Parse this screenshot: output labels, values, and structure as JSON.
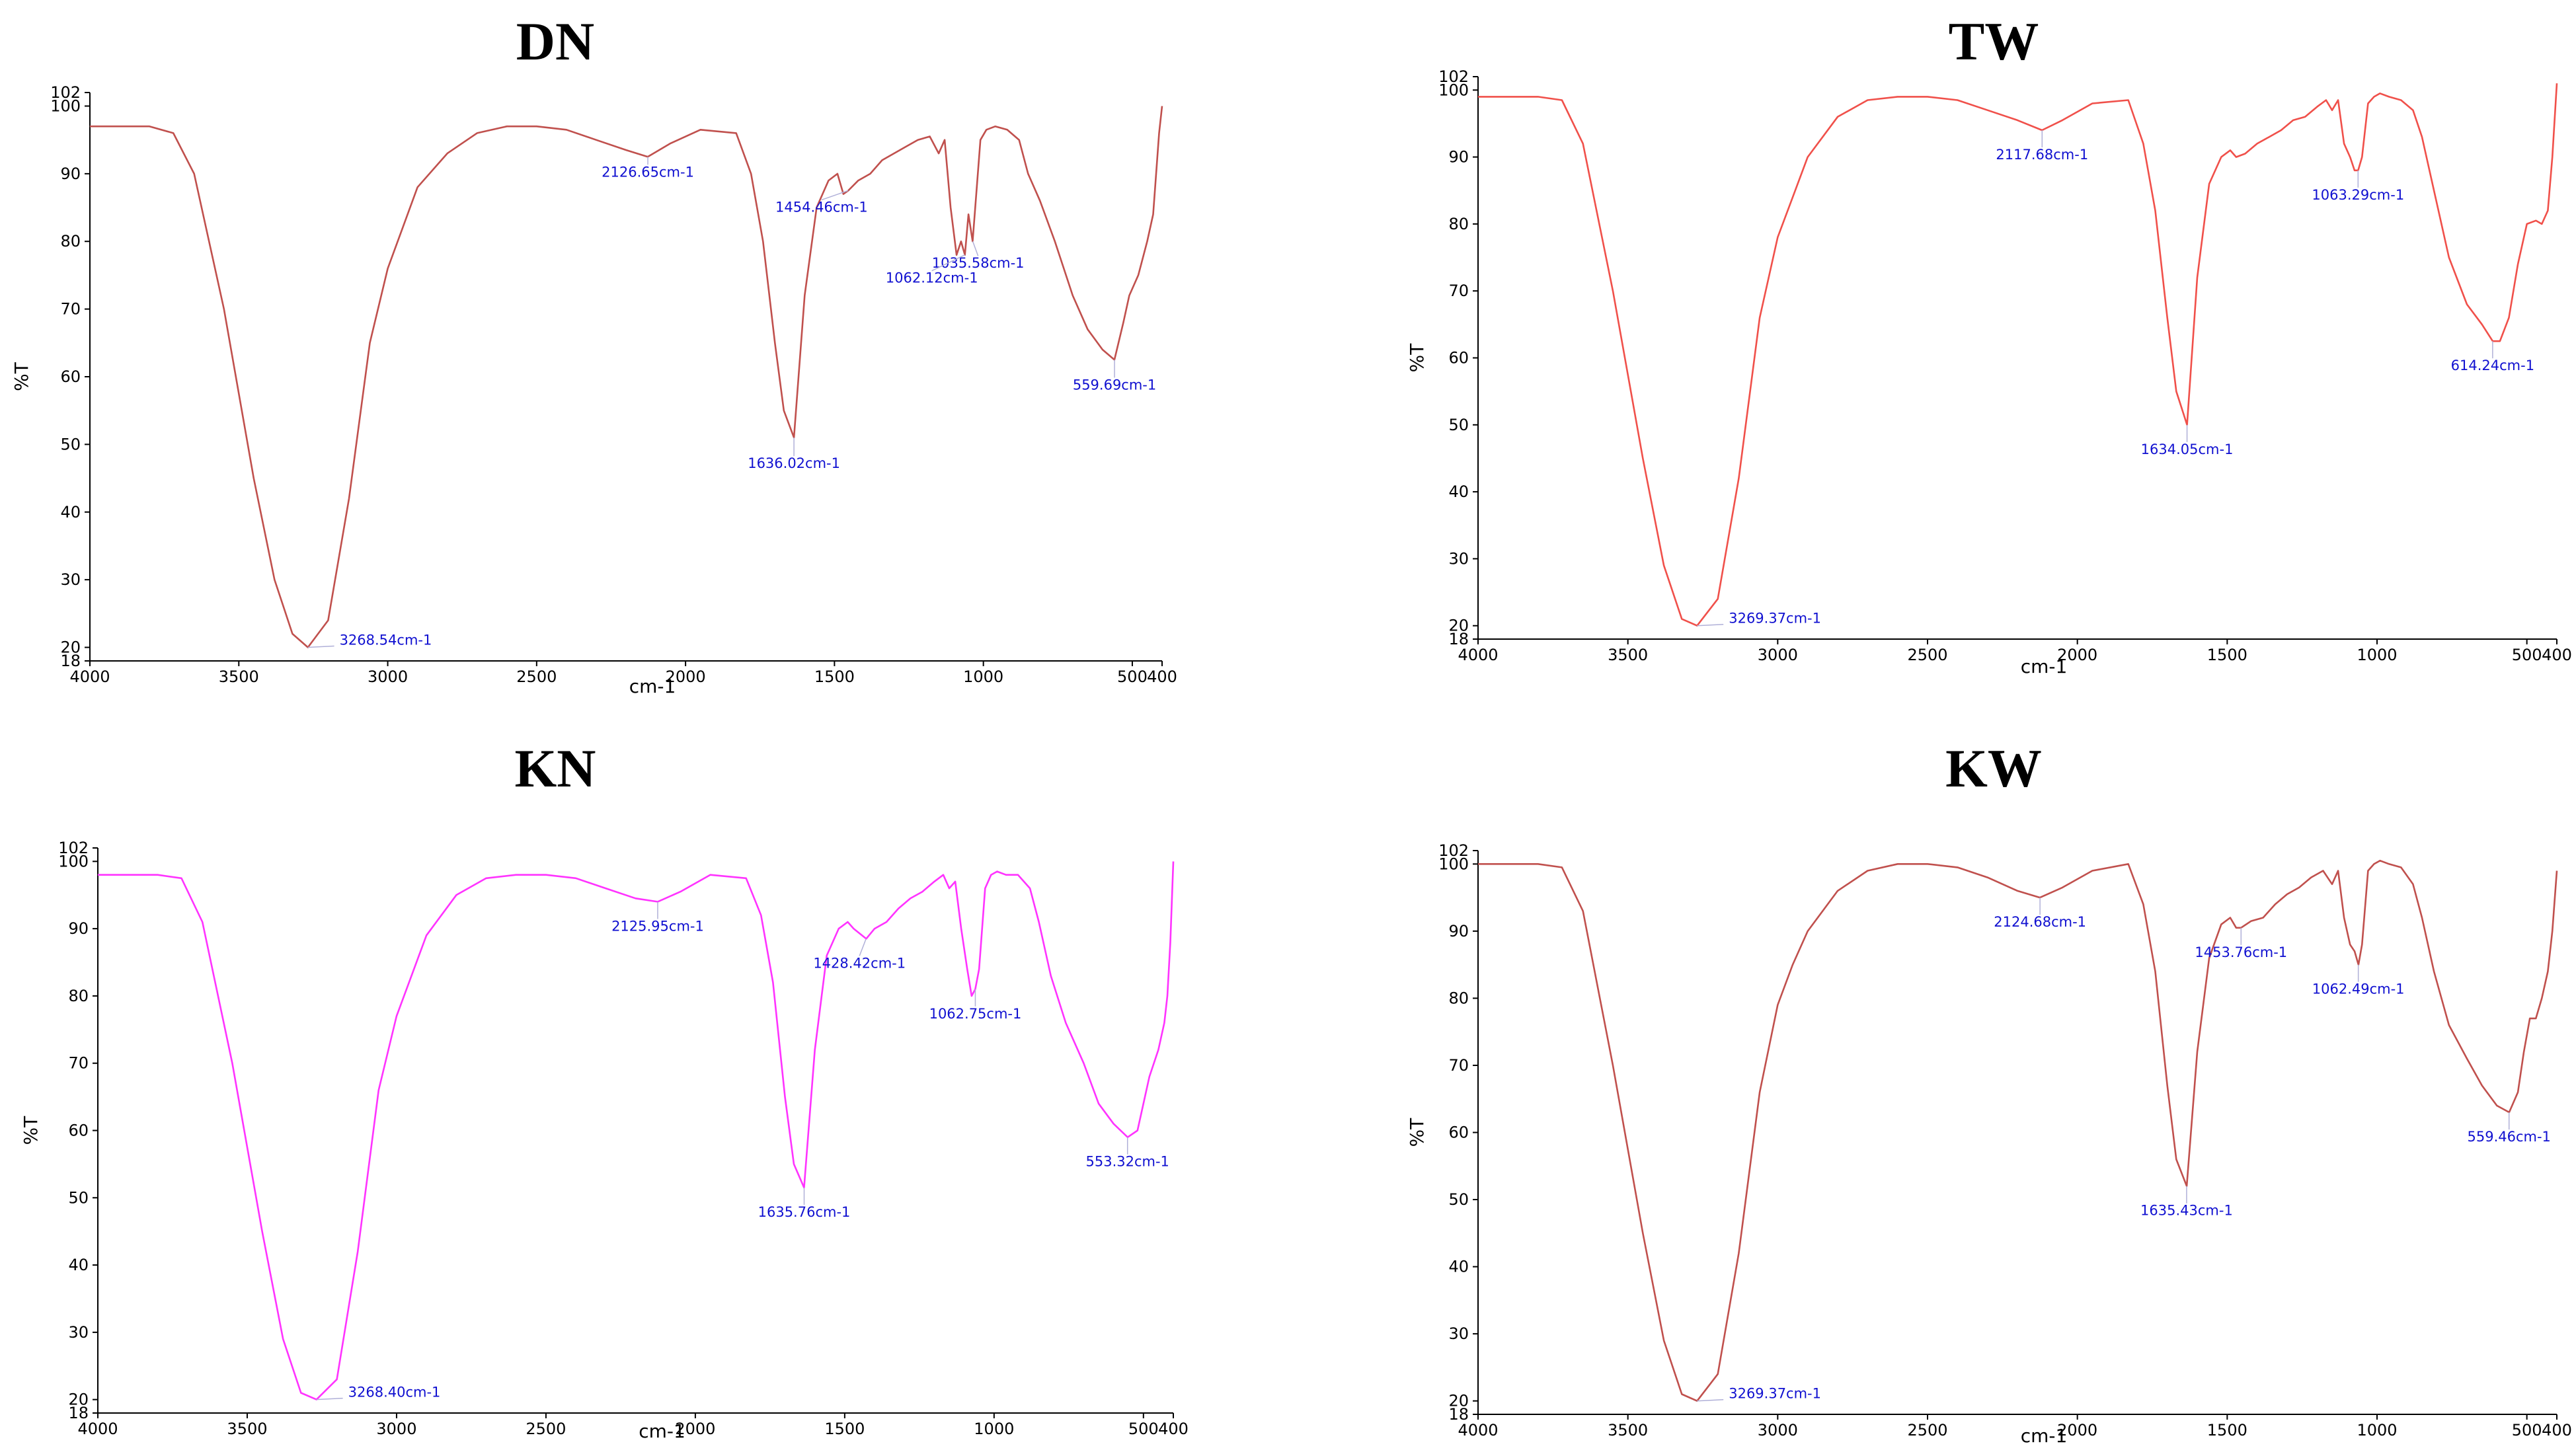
{
  "chart_data": [
    {
      "type": "line",
      "title": "DN",
      "xlabel": "cm-1",
      "ylabel": "%T",
      "xlim": [
        4000,
        400
      ],
      "ylim": [
        18,
        102
      ],
      "x_reversed": true,
      "xticks": [
        4000,
        3500,
        3000,
        2500,
        2000,
        1500,
        1000,
        500,
        400
      ],
      "yticks": [
        18,
        20,
        30,
        40,
        50,
        60,
        70,
        80,
        90,
        100,
        102
      ],
      "grid": false,
      "series": [
        {
          "color": "#c0504d",
          "x": [
            4000,
            3800,
            3720,
            3650,
            3550,
            3450,
            3380,
            3320,
            3268,
            3200,
            3130,
            3060,
            3000,
            2950,
            2900,
            2800,
            2700,
            2600,
            2500,
            2400,
            2300,
            2200,
            2127,
            2050,
            1950,
            1830,
            1780,
            1740,
            1700,
            1670,
            1636,
            1600,
            1560,
            1520,
            1490,
            1470,
            1454,
            1420,
            1380,
            1340,
            1300,
            1260,
            1220,
            1180,
            1150,
            1130,
            1110,
            1090,
            1075,
            1062,
            1050,
            1036,
            1010,
            990,
            960,
            920,
            880,
            850,
            810,
            760,
            700,
            650,
            600,
            560,
            530,
            510,
            480,
            450,
            430,
            420,
            410,
            400
          ],
          "y": [
            97,
            97,
            96,
            90,
            70,
            45,
            30,
            22,
            20,
            24,
            42,
            65,
            76,
            82,
            88,
            93,
            96,
            97,
            97,
            96.5,
            95,
            93.5,
            92.5,
            94.5,
            96.5,
            96,
            90,
            80,
            65,
            55,
            51,
            72,
            85,
            89,
            90,
            87,
            87.5,
            89,
            90,
            92,
            93,
            94,
            95,
            95.5,
            93,
            95,
            85,
            78,
            80,
            78,
            84,
            80,
            95,
            96.5,
            97,
            96.5,
            95,
            90,
            86,
            80,
            72,
            67,
            64,
            62.5,
            68,
            72,
            75,
            80,
            84,
            90,
            96,
            100
          ]
        }
      ],
      "peaks": [
        {
          "label": "2126.65cm-1",
          "x": 2126.65,
          "y": 92.5
        },
        {
          "label": "1454.46cm-1",
          "x": 1454.46,
          "y": 87.5
        },
        {
          "label": "1035.58cm-1",
          "x": 1035.58,
          "y": 80
        },
        {
          "label": "1062.12cm-1",
          "x": 1062.12,
          "y": 78
        },
        {
          "label": "559.69cm-1",
          "x": 559.69,
          "y": 62.5
        },
        {
          "label": "1636.02cm-1",
          "x": 1636.02,
          "y": 51
        },
        {
          "label": "3268.54cm-1",
          "x": 3268.54,
          "y": 20
        }
      ]
    },
    {
      "type": "line",
      "title": "TW",
      "xlabel": "cm-1",
      "ylabel": "%T",
      "xlim": [
        4000,
        400
      ],
      "ylim": [
        18,
        102
      ],
      "x_reversed": true,
      "xticks": [
        4000,
        3500,
        3000,
        2500,
        2000,
        1500,
        1000,
        500,
        400
      ],
      "yticks": [
        18,
        20,
        30,
        40,
        50,
        60,
        70,
        80,
        90,
        100,
        102
      ],
      "grid": false,
      "series": [
        {
          "color": "#f0504a",
          "x": [
            4000,
            3800,
            3720,
            3650,
            3550,
            3450,
            3380,
            3320,
            3269,
            3200,
            3130,
            3060,
            3000,
            2950,
            2900,
            2800,
            2700,
            2600,
            2500,
            2400,
            2300,
            2200,
            2118,
            2050,
            1950,
            1830,
            1780,
            1740,
            1700,
            1670,
            1634,
            1600,
            1560,
            1520,
            1490,
            1470,
            1440,
            1400,
            1360,
            1320,
            1280,
            1240,
            1200,
            1170,
            1150,
            1130,
            1110,
            1090,
            1075,
            1063,
            1050,
            1030,
            1010,
            990,
            960,
            920,
            880,
            850,
            810,
            760,
            700,
            650,
            614,
            590,
            560,
            530,
            500,
            470,
            450,
            430,
            415,
            400
          ],
          "y": [
            99,
            99,
            98.5,
            92,
            70,
            45,
            29,
            21,
            20,
            24,
            42,
            66,
            78,
            84,
            90,
            96,
            98.5,
            99,
            99,
            98.5,
            97,
            95.5,
            94,
            95.5,
            98,
            98.5,
            92,
            82,
            66,
            55,
            50,
            72,
            86,
            90,
            91,
            90,
            90.5,
            92,
            93,
            94,
            95.5,
            96,
            97.5,
            98.5,
            97,
            98.5,
            92,
            90,
            88,
            88,
            90,
            98,
            99,
            99.5,
            99,
            98.5,
            97,
            93,
            85,
            75,
            68,
            65,
            62.5,
            62.5,
            66,
            74,
            80,
            80.5,
            80,
            82,
            90,
            101
          ]
        }
      ],
      "peaks": [
        {
          "label": "2117.68cm-1",
          "x": 2117.68,
          "y": 94
        },
        {
          "label": "1063.29cm-1",
          "x": 1063.29,
          "y": 88
        },
        {
          "label": "614.24cm-1",
          "x": 614.24,
          "y": 62.5
        },
        {
          "label": "1634.05cm-1",
          "x": 1634.05,
          "y": 50
        },
        {
          "label": "3269.37cm-1",
          "x": 3269.37,
          "y": 20
        }
      ]
    },
    {
      "type": "line",
      "title": "KN",
      "xlabel": "cm-1",
      "ylabel": "%T",
      "xlim": [
        4000,
        400
      ],
      "ylim": [
        18,
        102
      ],
      "x_reversed": true,
      "xticks": [
        4000,
        3500,
        3000,
        2500,
        2000,
        1500,
        1000,
        500,
        400
      ],
      "yticks": [
        18,
        20,
        30,
        40,
        50,
        60,
        70,
        80,
        90,
        100,
        102
      ],
      "grid": false,
      "series": [
        {
          "color": "#ff33ff",
          "x": [
            4000,
            3800,
            3720,
            3650,
            3550,
            3450,
            3380,
            3320,
            3268,
            3200,
            3130,
            3060,
            3000,
            2950,
            2900,
            2800,
            2700,
            2600,
            2500,
            2400,
            2300,
            2200,
            2126,
            2050,
            1950,
            1830,
            1780,
            1740,
            1700,
            1670,
            1636,
            1600,
            1560,
            1520,
            1490,
            1470,
            1428,
            1400,
            1360,
            1320,
            1280,
            1240,
            1200,
            1170,
            1150,
            1130,
            1110,
            1090,
            1075,
            1063,
            1050,
            1030,
            1010,
            990,
            960,
            920,
            880,
            850,
            810,
            760,
            700,
            650,
            600,
            553,
            520,
            500,
            480,
            450,
            430,
            420,
            410,
            400
          ],
          "y": [
            98,
            98,
            97.5,
            91,
            70,
            45,
            29,
            21,
            20,
            23,
            42,
            66,
            77,
            83,
            89,
            95,
            97.5,
            98,
            98,
            97.5,
            96,
            94.5,
            94,
            95.5,
            98,
            97.5,
            92,
            82,
            65,
            55,
            51.5,
            72,
            86,
            90,
            91,
            90,
            88.5,
            90,
            91,
            93,
            94.5,
            95.5,
            97,
            98,
            96,
            97,
            90,
            84,
            80,
            81,
            84,
            96,
            98,
            98.5,
            98,
            98,
            96,
            91,
            83,
            76,
            70,
            64,
            61,
            59,
            60,
            64,
            68,
            72,
            76,
            80,
            88,
            100
          ]
        }
      ],
      "peaks": [
        {
          "label": "2125.95cm-1",
          "x": 2125.95,
          "y": 94
        },
        {
          "label": "1428.42cm-1",
          "x": 1428.42,
          "y": 88.5
        },
        {
          "label": "1062.75cm-1",
          "x": 1062.75,
          "y": 81
        },
        {
          "label": "553.32cm-1",
          "x": 553.32,
          "y": 59
        },
        {
          "label": "1635.76cm-1",
          "x": 1635.76,
          "y": 51.5
        },
        {
          "label": "3268.40cm-1",
          "x": 3268.4,
          "y": 20
        }
      ]
    },
    {
      "type": "line",
      "title": "KW",
      "xlabel": "cm-1",
      "ylabel": "%T",
      "xlim": [
        4000,
        400
      ],
      "ylim": [
        18,
        102
      ],
      "x_reversed": true,
      "xticks": [
        4000,
        3500,
        3000,
        2500,
        2000,
        1500,
        1000,
        500,
        400
      ],
      "yticks": [
        18,
        20,
        30,
        40,
        50,
        60,
        70,
        80,
        90,
        100,
        102
      ],
      "grid": false,
      "series": [
        {
          "color": "#c0504d",
          "x": [
            4000,
            3800,
            3720,
            3650,
            3550,
            3450,
            3380,
            3320,
            3269,
            3200,
            3130,
            3060,
            3000,
            2950,
            2900,
            2800,
            2700,
            2600,
            2500,
            2400,
            2300,
            2200,
            2125,
            2050,
            1950,
            1830,
            1780,
            1740,
            1700,
            1670,
            1635,
            1600,
            1560,
            1520,
            1490,
            1470,
            1454,
            1420,
            1380,
            1340,
            1300,
            1260,
            1220,
            1180,
            1150,
            1130,
            1110,
            1090,
            1075,
            1062,
            1050,
            1030,
            1010,
            990,
            960,
            920,
            880,
            850,
            810,
            760,
            700,
            650,
            600,
            559,
            530,
            510,
            490,
            470,
            450,
            430,
            415,
            400
          ],
          "y": [
            100,
            100,
            99.5,
            93,
            70,
            45,
            29,
            21,
            20,
            24,
            42,
            66,
            79,
            85,
            90,
            96,
            99,
            100,
            100,
            99.5,
            98,
            96,
            95,
            96.5,
            99,
            100,
            94,
            84,
            67,
            56,
            52,
            72,
            86,
            91,
            92,
            90.5,
            90.5,
            91.5,
            92,
            94,
            95.5,
            96.5,
            98,
            99,
            97,
            99,
            92,
            88,
            87,
            85,
            88,
            99,
            100,
            100.5,
            100,
            99.5,
            97,
            92,
            84,
            76,
            71,
            67,
            64,
            63,
            66,
            72,
            77,
            77,
            80,
            84,
            90,
            99
          ]
        }
      ],
      "peaks": [
        {
          "label": "2124.68cm-1",
          "x": 2124.68,
          "y": 95
        },
        {
          "label": "1453.76cm-1",
          "x": 1453.76,
          "y": 90.5
        },
        {
          "label": "1062.49cm-1",
          "x": 1062.49,
          "y": 85
        },
        {
          "label": "559.46cm-1",
          "x": 559.46,
          "y": 63
        },
        {
          "label": "1635.43cm-1",
          "x": 1635.43,
          "y": 52
        },
        {
          "label": "3269.37cm-1",
          "x": 3269.37,
          "y": 20
        }
      ]
    }
  ]
}
